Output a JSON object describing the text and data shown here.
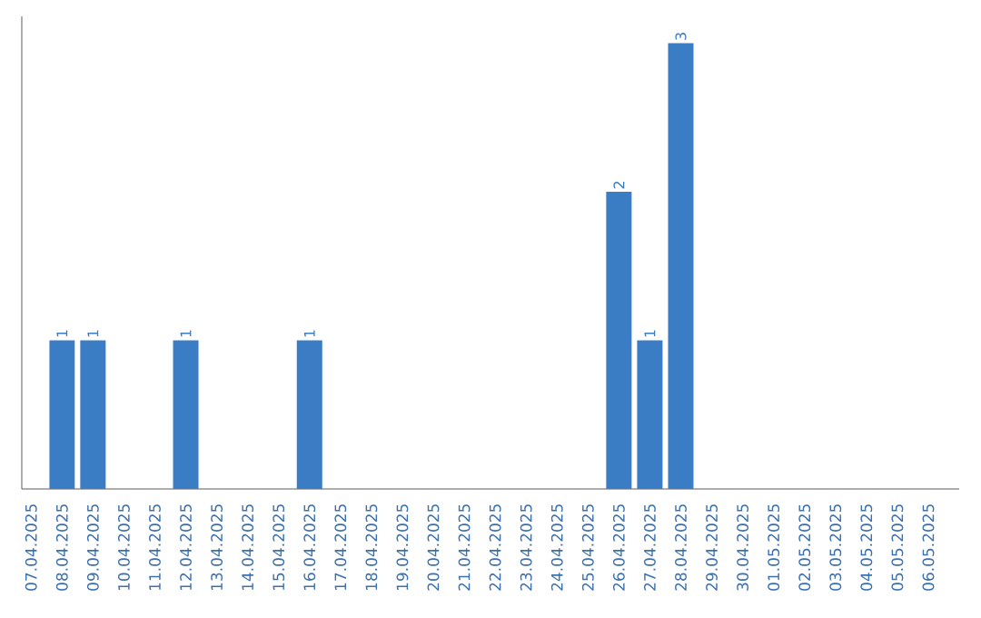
{
  "chart_data": {
    "type": "bar",
    "categories": [
      "07.04.2025",
      "08.04.2025",
      "09.04.2025",
      "10.04.2025",
      "11.04.2025",
      "12.04.2025",
      "13.04.2025",
      "14.04.2025",
      "15.04.2025",
      "16.04.2025",
      "17.04.2025",
      "18.04.2025",
      "19.04.2025",
      "20.04.2025",
      "21.04.2025",
      "22.04.2025",
      "23.04.2025",
      "24.04.2025",
      "25.04.2025",
      "26.04.2025",
      "27.04.2025",
      "28.04.2025",
      "29.04.2025",
      "30.04.2025",
      "01.05.2025",
      "02.05.2025",
      "03.05.2025",
      "04.05.2025",
      "05.05.2025",
      "06.05.2025"
    ],
    "values": [
      0,
      1,
      1,
      0,
      0,
      1,
      0,
      0,
      0,
      1,
      0,
      0,
      0,
      0,
      0,
      0,
      0,
      0,
      0,
      2,
      1,
      3,
      0,
      0,
      0,
      0,
      0,
      0,
      0,
      0
    ],
    "value_labels": [
      null,
      "1",
      "1",
      null,
      null,
      "1",
      null,
      null,
      null,
      "1",
      null,
      null,
      null,
      null,
      null,
      null,
      null,
      null,
      null,
      "2",
      "1",
      "3",
      null,
      null,
      null,
      null,
      null,
      null,
      null,
      null
    ],
    "color": "#3b7dc4",
    "tick_labels": "x"
  }
}
